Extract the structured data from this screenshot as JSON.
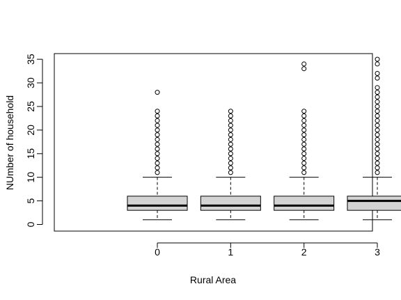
{
  "chart_data": {
    "type": "boxplot",
    "xlabel": "Rural Area",
    "ylabel": "NUmber of household",
    "ylim": [
      -1.4,
      36.2
    ],
    "yticks": [
      0,
      5,
      10,
      15,
      20,
      25,
      30,
      35
    ],
    "grid": false,
    "legend": "none",
    "box_fill": "#d3d3d3",
    "categories": [
      "0",
      "1",
      "2",
      "3"
    ],
    "boxes": [
      {
        "category": "0",
        "whisker_low": 1,
        "q1": 3,
        "median": 4,
        "q3": 6,
        "whisker_high": 10,
        "outliers": [
          11,
          12,
          13,
          14,
          15,
          16,
          17,
          18,
          19,
          20,
          21,
          22,
          23,
          24,
          28
        ]
      },
      {
        "category": "1",
        "whisker_low": 1,
        "q1": 3,
        "median": 4,
        "q3": 6,
        "whisker_high": 10,
        "outliers": [
          11,
          12,
          13,
          14,
          15,
          16,
          17,
          18,
          19,
          20,
          21,
          22,
          23,
          24
        ]
      },
      {
        "category": "2",
        "whisker_low": 1,
        "q1": 3,
        "median": 4,
        "q3": 6,
        "whisker_high": 10,
        "outliers": [
          11,
          12,
          13,
          14,
          15,
          16,
          17,
          18,
          19,
          20,
          21,
          22,
          23,
          24,
          33,
          34
        ]
      },
      {
        "category": "3",
        "whisker_low": 1,
        "q1": 3,
        "median": 5,
        "q3": 6,
        "whisker_high": 10,
        "outliers": [
          11,
          12,
          13,
          14,
          15,
          16,
          17,
          18,
          19,
          20,
          21,
          22,
          23,
          24,
          25,
          26,
          27,
          28,
          29,
          31,
          32,
          34,
          35
        ]
      }
    ]
  }
}
